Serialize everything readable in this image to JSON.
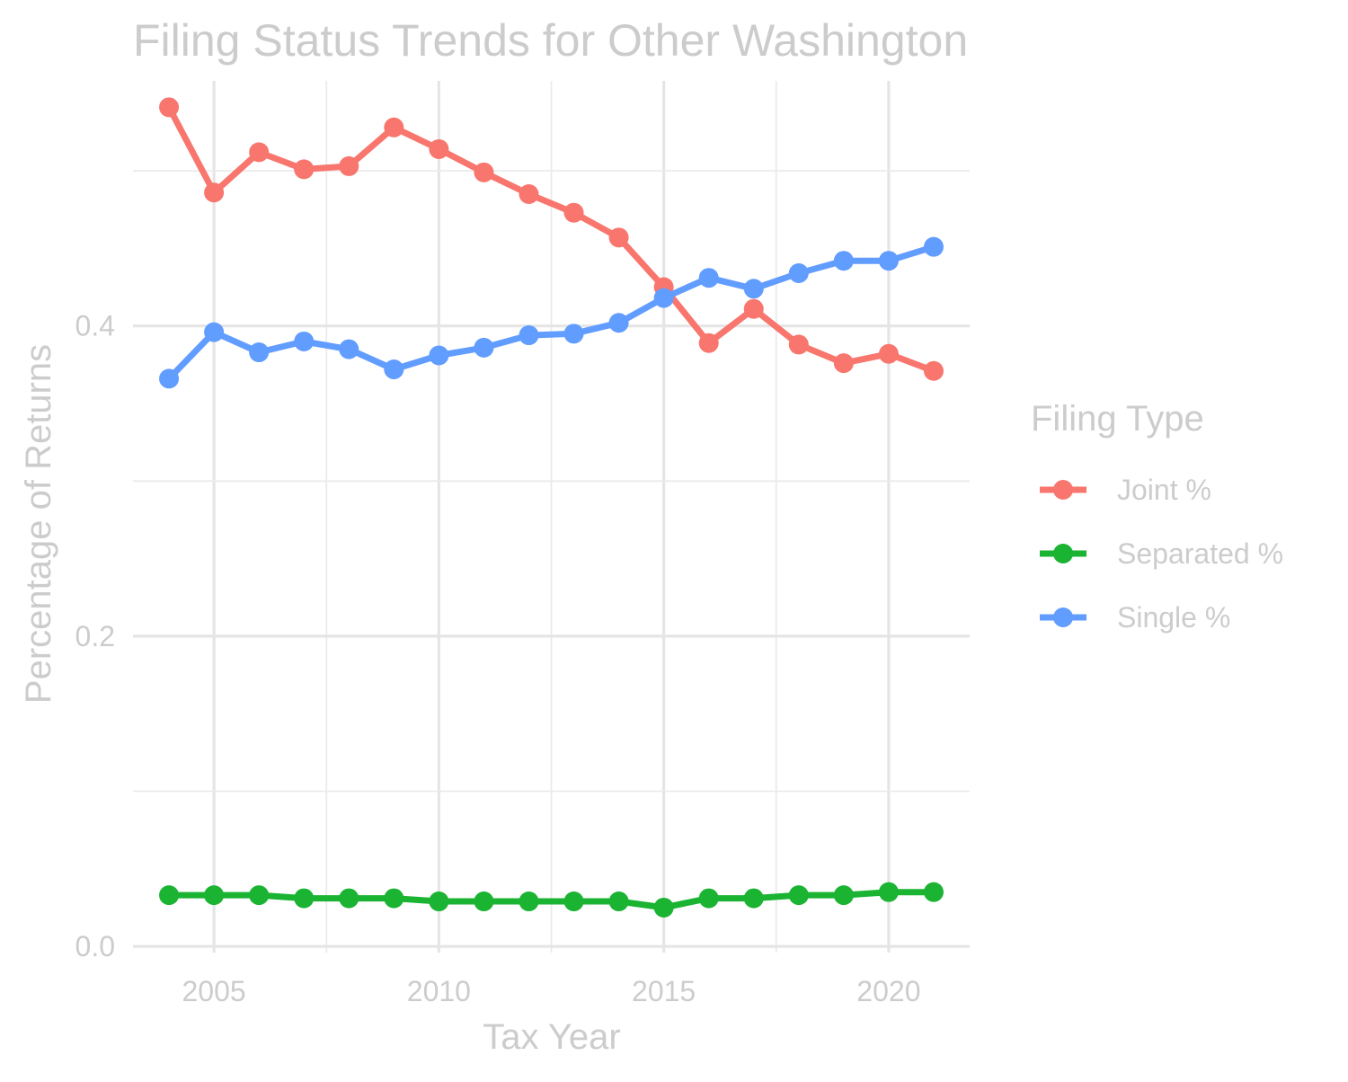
{
  "chart_data": {
    "type": "line",
    "title": "Filing Status Trends for Other Washington",
    "xlabel": "Tax Year",
    "ylabel": "Percentage of Returns",
    "xlim": [
      2003.2,
      2021.8
    ],
    "ylim": [
      -0.004,
      0.558
    ],
    "x_ticks": [
      2005,
      2010,
      2015,
      2020
    ],
    "x_tick_labels": [
      "2005",
      "2010",
      "2015",
      "2020"
    ],
    "y_ticks": [
      0.0,
      0.2,
      0.4
    ],
    "y_tick_labels": [
      "0.0",
      "0.2",
      "0.4"
    ],
    "grid": true,
    "legend_title": "Filing Type",
    "legend_position": "right",
    "x": [
      2004,
      2005,
      2006,
      2007,
      2008,
      2009,
      2010,
      2011,
      2012,
      2013,
      2014,
      2015,
      2016,
      2017,
      2018,
      2019,
      2020,
      2021
    ],
    "series": [
      {
        "name": "Joint %",
        "color": "#F8766D",
        "values": [
          0.541,
          0.486,
          0.512,
          0.501,
          0.503,
          0.528,
          0.514,
          0.499,
          0.485,
          0.473,
          0.457,
          0.425,
          0.389,
          0.411,
          0.388,
          0.376,
          0.382,
          0.371
        ]
      },
      {
        "name": "Separated %",
        "color": "#1AB332",
        "values": [
          0.033,
          0.033,
          0.033,
          0.031,
          0.031,
          0.031,
          0.029,
          0.029,
          0.029,
          0.029,
          0.029,
          0.025,
          0.031,
          0.031,
          0.033,
          0.033,
          0.035,
          0.035
        ]
      },
      {
        "name": "Single %",
        "color": "#619CFF",
        "values": [
          0.366,
          0.396,
          0.383,
          0.39,
          0.385,
          0.372,
          0.381,
          0.386,
          0.394,
          0.395,
          0.402,
          0.418,
          0.431,
          0.424,
          0.434,
          0.442,
          0.442,
          0.451
        ]
      }
    ]
  }
}
